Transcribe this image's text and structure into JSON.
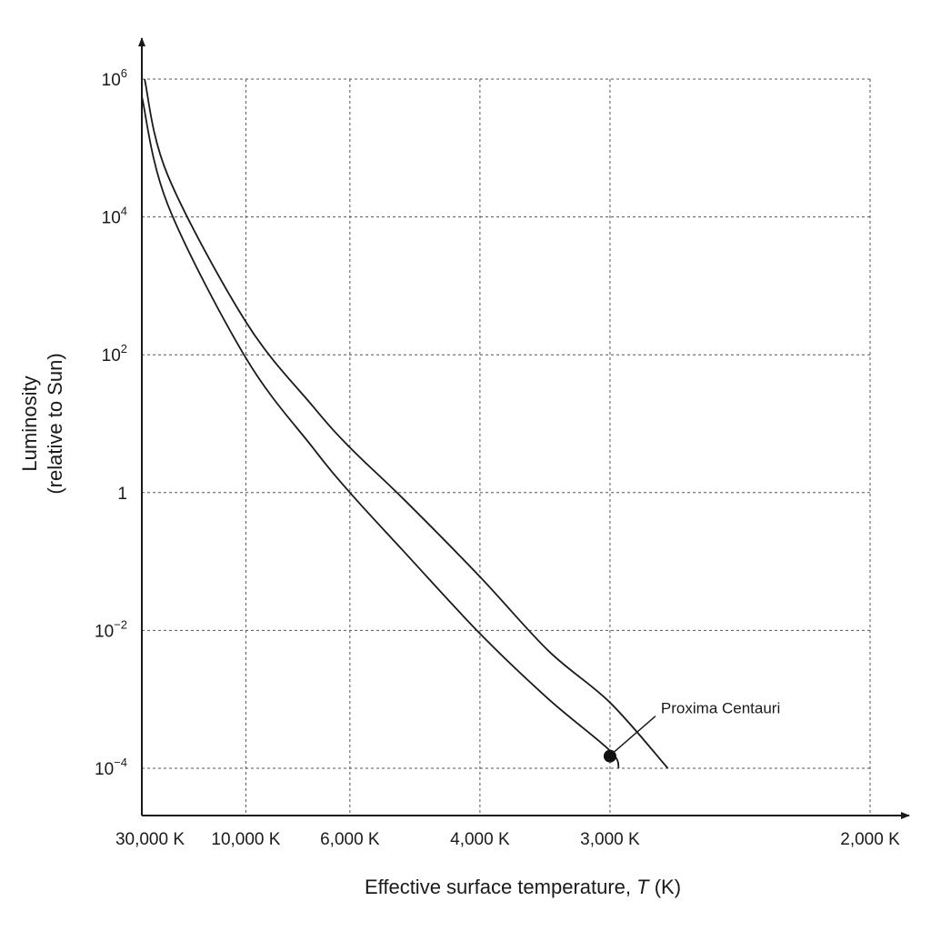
{
  "chart_data": {
    "type": "line",
    "xlabel": "Effective surface temperature, T (K)",
    "xlabel_parts": {
      "prefix": "Effective surface temperature, ",
      "var": "T",
      "suffix": " (K)"
    },
    "ylabel_line1": "Luminosity",
    "ylabel_line2": "(relative to Sun)",
    "x_scale": "reciprocal",
    "x_reversed": true,
    "xlim": [
      30000,
      2000
    ],
    "y_scale": "log",
    "ylim": [
      0.0001,
      1000000
    ],
    "grid": true,
    "x_ticks": [
      {
        "value": 30000,
        "label": "30,000 K"
      },
      {
        "value": 10000,
        "label": "10,000 K"
      },
      {
        "value": 6000,
        "label": "6,000 K"
      },
      {
        "value": 4000,
        "label": "4,000 K"
      },
      {
        "value": 3000,
        "label": "3,000 K"
      },
      {
        "value": 2000,
        "label": "2,000 K"
      }
    ],
    "y_ticks": [
      {
        "value": 1000000,
        "base": "10",
        "exp": "6"
      },
      {
        "value": 10000,
        "base": "10",
        "exp": "4"
      },
      {
        "value": 100,
        "base": "10",
        "exp": "2"
      },
      {
        "value": 1,
        "base": "1",
        "exp": ""
      },
      {
        "value": 0.01,
        "base": "10",
        "exp": "−2"
      },
      {
        "value": 0.0001,
        "base": "10",
        "exp": "−4"
      }
    ],
    "series": [
      {
        "points": [
          {
            "x": 30000,
            "y": 560000
          },
          {
            "x": 20000,
            "y": 15000
          },
          {
            "x": 10000,
            "y": 90
          },
          {
            "x": 7000,
            "y": 4.5
          },
          {
            "x": 6000,
            "y": 1
          },
          {
            "x": 5000,
            "y": 0.15
          },
          {
            "x": 4000,
            "y": 0.009
          },
          {
            "x": 3400,
            "y": 0.001
          },
          {
            "x": 3000,
            "y": 0.00018
          },
          {
            "x": 2950,
            "y": 0.0001
          }
        ]
      },
      {
        "points": [
          {
            "x": 28500,
            "y": 1000000
          },
          {
            "x": 20000,
            "y": 40000
          },
          {
            "x": 10000,
            "y": 300
          },
          {
            "x": 7000,
            "y": 18
          },
          {
            "x": 6000,
            "y": 4.5
          },
          {
            "x": 5000,
            "y": 0.85
          },
          {
            "x": 4000,
            "y": 0.06
          },
          {
            "x": 3400,
            "y": 0.005
          },
          {
            "x": 3000,
            "y": 0.0009
          },
          {
            "x": 2700,
            "y": 0.0001
          }
        ]
      }
    ],
    "highlight": {
      "label": "Proxima Centauri",
      "x": 3000,
      "y": 0.00015
    }
  }
}
